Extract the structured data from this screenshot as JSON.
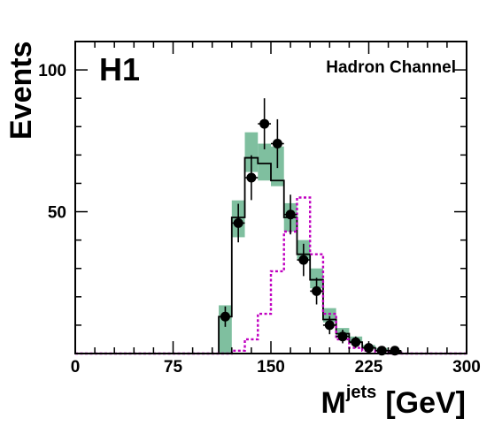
{
  "chart_data": {
    "type": "histogram",
    "experiment_label": "H1",
    "title": "Hadron Channel",
    "ylabel": "Events",
    "xlabel": {
      "main": "M",
      "superscript": "jets",
      "unit": "[GeV]"
    },
    "xlim": [
      0,
      300
    ],
    "ylim": [
      0,
      110
    ],
    "x_ticks": [
      {
        "value": 0,
        "label": "0"
      },
      {
        "value": 75,
        "label": "75"
      },
      {
        "value": 150,
        "label": "150"
      },
      {
        "value": 225,
        "label": "225"
      },
      {
        "value": 300,
        "label": "300"
      }
    ],
    "y_ticks": [
      {
        "value": 50,
        "label": "50"
      },
      {
        "value": 100,
        "label": "100"
      }
    ],
    "bin_edges": [
      0,
      10,
      20,
      30,
      40,
      50,
      60,
      70,
      80,
      90,
      100,
      110,
      120,
      130,
      140,
      150,
      160,
      170,
      180,
      190,
      200,
      210,
      220,
      230,
      240,
      250,
      260,
      270,
      280,
      290,
      300
    ],
    "series": [
      {
        "kind": "band",
        "color": "#7fbf9f",
        "lower": [
          0,
          0,
          0,
          0,
          0,
          0,
          0,
          0,
          0,
          0,
          0,
          0,
          41,
          64,
          61,
          59,
          43,
          33,
          23,
          11,
          6,
          4,
          2,
          1,
          0.5,
          0,
          0,
          0,
          0,
          0
        ],
        "upper": [
          0,
          0,
          0,
          0,
          0,
          0,
          0,
          0,
          0,
          0,
          0,
          17,
          54,
          78,
          74,
          73,
          53,
          40,
          30,
          16,
          9,
          6,
          3,
          2,
          1,
          0,
          0,
          0,
          0,
          0
        ]
      },
      {
        "kind": "step",
        "color": "#000000",
        "style": "solid",
        "values": [
          0,
          0,
          0,
          0,
          0,
          0,
          0,
          0,
          0,
          0,
          0,
          13,
          48,
          69,
          67,
          61,
          48,
          35,
          26,
          12,
          7,
          4,
          2,
          1,
          0.5,
          0,
          0,
          0,
          0,
          0
        ]
      },
      {
        "kind": "step",
        "color": "#c000c0",
        "style": "dotted",
        "values": [
          0,
          0,
          0,
          0,
          0,
          0,
          0,
          0,
          0,
          0,
          0,
          0,
          1,
          5,
          14,
          29,
          43,
          55,
          35,
          14,
          5,
          2,
          1,
          0.5,
          0,
          0,
          0,
          0,
          0,
          0
        ]
      },
      {
        "kind": "points",
        "color": "#000000",
        "points": [
          {
            "x": 115,
            "y": 13,
            "err": 3.6
          },
          {
            "x": 125,
            "y": 46,
            "err": 6.8
          },
          {
            "x": 135,
            "y": 62,
            "err": 7.9
          },
          {
            "x": 145,
            "y": 81,
            "err": 9
          },
          {
            "x": 155,
            "y": 74,
            "err": 8.6
          },
          {
            "x": 165,
            "y": 49,
            "err": 7
          },
          {
            "x": 175,
            "y": 33,
            "err": 5.7
          },
          {
            "x": 185,
            "y": 22,
            "err": 4.7
          },
          {
            "x": 195,
            "y": 10,
            "err": 3.2
          },
          {
            "x": 205,
            "y": 6,
            "err": 2.4
          },
          {
            "x": 215,
            "y": 4,
            "err": 2
          },
          {
            "x": 225,
            "y": 2,
            "err": 1.4
          },
          {
            "x": 235,
            "y": 1,
            "err": 1
          },
          {
            "x": 245,
            "y": 1,
            "err": 1
          }
        ]
      }
    ],
    "legend": "none",
    "grid": false
  }
}
